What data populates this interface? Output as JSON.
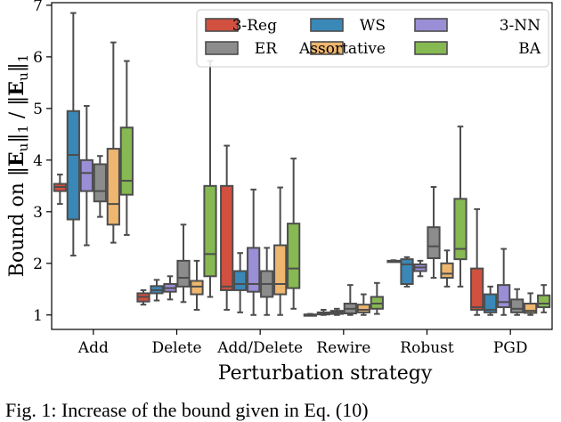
{
  "chart_data": {
    "type": "boxplot",
    "xlabel": "Perturbation strategy",
    "ylabel": "Bound on ||E_u||_1 / ||E_u||_1",
    "ylabel_left": "Bound on ",
    "ylabel_mid": " / ",
    "ylabel_norm": "E",
    "ylabel_sub": "u",
    "ylabel_outer_sub": "1",
    "ylim": [
      0.72,
      7.05
    ],
    "yticks": [
      1,
      2,
      3,
      4,
      5,
      6,
      7
    ],
    "legend_position": "top-right",
    "categories": [
      "Add",
      "Delete",
      "Add/Delete",
      "Rewire",
      "Robust",
      "PGD"
    ],
    "series": [
      {
        "name": "3-Reg",
        "color": "#d1503f",
        "boxes": [
          {
            "whislo": 3.15,
            "q1": 3.4,
            "med": 3.48,
            "q3": 3.54,
            "whishi": 3.72
          },
          {
            "whislo": 1.2,
            "q1": 1.26,
            "med": 1.35,
            "q3": 1.42,
            "whishi": 1.48
          },
          {
            "whislo": 1.1,
            "q1": 1.48,
            "med": 1.55,
            "q3": 3.5,
            "whishi": 4.28
          },
          {
            "whislo": 1.0,
            "q1": 1.0,
            "med": 1.0,
            "q3": 1.01,
            "whishi": 1.02
          },
          {
            "whislo": 2.03,
            "q1": 2.03,
            "med": 2.04,
            "q3": 2.05,
            "whishi": 2.06
          },
          {
            "whislo": 1.0,
            "q1": 1.1,
            "med": 1.15,
            "q3": 1.9,
            "whishi": 3.05
          }
        ]
      },
      {
        "name": "WS",
        "color": "#3a88b8",
        "boxes": [
          {
            "whislo": 2.15,
            "q1": 2.85,
            "med": 4.1,
            "q3": 4.95,
            "whishi": 6.85
          },
          {
            "whislo": 1.28,
            "q1": 1.42,
            "med": 1.48,
            "q3": 1.56,
            "whishi": 1.68
          },
          {
            "whislo": 1.05,
            "q1": 1.48,
            "med": 1.6,
            "q3": 1.85,
            "whishi": 2.2
          },
          {
            "whislo": 1.0,
            "q1": 1.01,
            "med": 1.03,
            "q3": 1.05,
            "whishi": 1.1
          },
          {
            "whislo": 1.55,
            "q1": 1.6,
            "med": 1.98,
            "q3": 2.08,
            "whishi": 2.12
          },
          {
            "whislo": 1.0,
            "q1": 1.05,
            "med": 1.1,
            "q3": 1.4,
            "whishi": 1.55
          }
        ]
      },
      {
        "name": "3-NN",
        "color": "#9a8ed6",
        "boxes": [
          {
            "whislo": 2.35,
            "q1": 3.4,
            "med": 3.75,
            "q3": 4.0,
            "whishi": 5.05
          },
          {
            "whislo": 1.3,
            "q1": 1.45,
            "med": 1.52,
            "q3": 1.6,
            "whishi": 1.75
          },
          {
            "whislo": 1.0,
            "q1": 1.45,
            "med": 1.6,
            "q3": 2.3,
            "whishi": 3.43
          },
          {
            "whislo": 1.0,
            "q1": 1.02,
            "med": 1.05,
            "q3": 1.08,
            "whishi": 1.12
          },
          {
            "whislo": 1.75,
            "q1": 1.85,
            "med": 1.92,
            "q3": 1.98,
            "whishi": 2.05
          },
          {
            "whislo": 1.0,
            "q1": 1.15,
            "med": 1.25,
            "q3": 1.58,
            "whishi": 2.28
          }
        ]
      },
      {
        "name": "ER",
        "color": "#8c8c8c",
        "boxes": [
          {
            "whislo": 2.9,
            "q1": 3.2,
            "med": 3.4,
            "q3": 3.92,
            "whishi": 4.08
          },
          {
            "whislo": 1.25,
            "q1": 1.55,
            "med": 1.72,
            "q3": 2.05,
            "whishi": 2.75
          },
          {
            "whislo": 1.0,
            "q1": 1.35,
            "med": 1.6,
            "q3": 1.85,
            "whishi": 2.3
          },
          {
            "whislo": 1.0,
            "q1": 1.03,
            "med": 1.12,
            "q3": 1.22,
            "whishi": 1.58
          },
          {
            "whislo": 1.72,
            "q1": 2.1,
            "med": 2.33,
            "q3": 2.7,
            "whishi": 3.48
          },
          {
            "whislo": 1.0,
            "q1": 1.05,
            "med": 1.12,
            "q3": 1.3,
            "whishi": 1.5
          }
        ]
      },
      {
        "name": "Assortative",
        "color": "#eeb66f",
        "boxes": [
          {
            "whislo": 2.4,
            "q1": 2.75,
            "med": 3.15,
            "q3": 4.22,
            "whishi": 6.28
          },
          {
            "whislo": 1.1,
            "q1": 1.4,
            "med": 1.55,
            "q3": 1.66,
            "whishi": 2.05
          },
          {
            "whislo": 1.0,
            "q1": 1.4,
            "med": 1.6,
            "q3": 2.35,
            "whishi": 3.47
          },
          {
            "whislo": 1.0,
            "q1": 1.05,
            "med": 1.1,
            "q3": 1.2,
            "whishi": 1.4
          },
          {
            "whislo": 1.55,
            "q1": 1.72,
            "med": 1.8,
            "q3": 2.0,
            "whishi": 2.25
          },
          {
            "whislo": 1.0,
            "q1": 1.04,
            "med": 1.08,
            "q3": 1.22,
            "whishi": 1.42
          }
        ]
      },
      {
        "name": "BA",
        "color": "#86b951",
        "boxes": [
          {
            "whislo": 2.55,
            "q1": 3.33,
            "med": 3.6,
            "q3": 4.63,
            "whishi": 5.92
          },
          {
            "whislo": 1.35,
            "q1": 1.75,
            "med": 2.18,
            "q3": 3.5,
            "whishi": 5.92
          },
          {
            "whislo": 1.12,
            "q1": 1.52,
            "med": 1.9,
            "q3": 2.77,
            "whishi": 4.03
          },
          {
            "whislo": 1.02,
            "q1": 1.12,
            "med": 1.22,
            "q3": 1.35,
            "whishi": 1.62
          },
          {
            "whislo": 1.55,
            "q1": 2.08,
            "med": 2.28,
            "q3": 3.25,
            "whishi": 4.65
          },
          {
            "whislo": 1.05,
            "q1": 1.15,
            "med": 1.22,
            "q3": 1.38,
            "whishi": 1.58
          }
        ]
      }
    ]
  },
  "caption": "Fig. 1: Increase of the bound given in Eq. (10)"
}
